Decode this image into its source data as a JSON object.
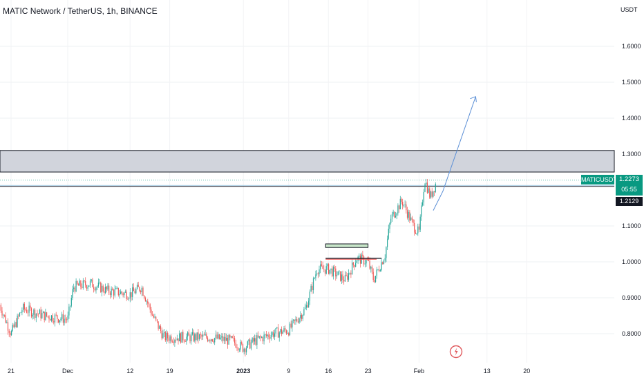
{
  "header": {
    "title": "MATIC Network / TetherUS, 1h, BINANCE",
    "currency": "USDT"
  },
  "tags": {
    "symbol": "MATICUSDT",
    "last_price": "1.2273",
    "countdown": "05:55",
    "marker_price": "1.2129"
  },
  "colors": {
    "up": "#26a69a",
    "down": "#ef5350",
    "tag_bg": "#089981",
    "zone_fill": "#d1d4dc",
    "arrow": "#5b8fd6",
    "event_icon": "#e0595d"
  },
  "icons": {
    "event": "flash-icon"
  },
  "chart_data": {
    "type": "candlestick",
    "title": "MATIC Network / TetherUS, 1h, BINANCE",
    "ylabel": "USDT",
    "ylim": [
      0.72,
      1.72
    ],
    "y_ticks": [
      "1.6000",
      "1.5000",
      "1.4000",
      "1.3000",
      "1.1000",
      "1.0000",
      "0.9000",
      "0.8000"
    ],
    "x_ticks": [
      "21",
      "Dec",
      "12",
      "19",
      "2023",
      "9",
      "16",
      "23",
      "Feb",
      "13",
      "20"
    ],
    "series": [
      {
        "interval": "1h",
        "approx_path": [
          {
            "x": "Nov 19",
            "y": 0.88
          },
          {
            "x": "Nov 21",
            "y": 0.8
          },
          {
            "x": "Nov 23",
            "y": 0.87
          },
          {
            "x": "Nov 27",
            "y": 0.85
          },
          {
            "x": "Dec 1",
            "y": 0.84
          },
          {
            "x": "Dec 2",
            "y": 0.93
          },
          {
            "x": "Dec 5",
            "y": 0.94
          },
          {
            "x": "Dec 8",
            "y": 0.92
          },
          {
            "x": "Dec 12",
            "y": 0.91
          },
          {
            "x": "Dec 14",
            "y": 0.93
          },
          {
            "x": "Dec 16",
            "y": 0.85
          },
          {
            "x": "Dec 18",
            "y": 0.79
          },
          {
            "x": "Dec 22",
            "y": 0.79
          },
          {
            "x": "Dec 26",
            "y": 0.79
          },
          {
            "x": "Dec 30",
            "y": 0.78
          },
          {
            "x": "Jan 1",
            "y": 0.76
          },
          {
            "x": "Jan 3",
            "y": 0.78
          },
          {
            "x": "Jan 6",
            "y": 0.8
          },
          {
            "x": "Jan 9",
            "y": 0.81
          },
          {
            "x": "Jan 12",
            "y": 0.87
          },
          {
            "x": "Jan 14",
            "y": 0.98
          },
          {
            "x": "Jan 16",
            "y": 0.98
          },
          {
            "x": "Jan 19",
            "y": 0.95
          },
          {
            "x": "Jan 21",
            "y": 1.01
          },
          {
            "x": "Jan 23",
            "y": 1.0
          },
          {
            "x": "Jan 24",
            "y": 0.95
          },
          {
            "x": "Jan 26",
            "y": 1.02
          },
          {
            "x": "Jan 27",
            "y": 1.12
          },
          {
            "x": "Jan 29",
            "y": 1.17
          },
          {
            "x": "Jan 31",
            "y": 1.1
          },
          {
            "x": "Feb 1",
            "y": 1.08
          },
          {
            "x": "Feb 2",
            "y": 1.23
          },
          {
            "x": "Feb 3",
            "y": 1.18
          },
          {
            "x": "Feb 4",
            "y": 1.22
          }
        ]
      }
    ],
    "annotations": [
      {
        "type": "zone",
        "from": 1.25,
        "to": 1.31
      },
      {
        "type": "hline",
        "value": 1.21
      },
      {
        "type": "hline",
        "value": 1.2273
      },
      {
        "type": "hline",
        "value": 1.2129
      },
      {
        "type": "rectangle",
        "from_x": "Jan 16",
        "to_x": "Jan 23",
        "from_y": 1.04,
        "to_y": 1.05
      },
      {
        "type": "hline_segment",
        "from_x": "Jan 16",
        "to_x": "Jan 25",
        "value": 1.01
      },
      {
        "type": "arrow",
        "from": {
          "x": "Feb 4",
          "y": 1.22
        },
        "to": {
          "x": "Feb 11",
          "y": 1.46
        }
      }
    ],
    "grid": true,
    "legend": "none"
  }
}
